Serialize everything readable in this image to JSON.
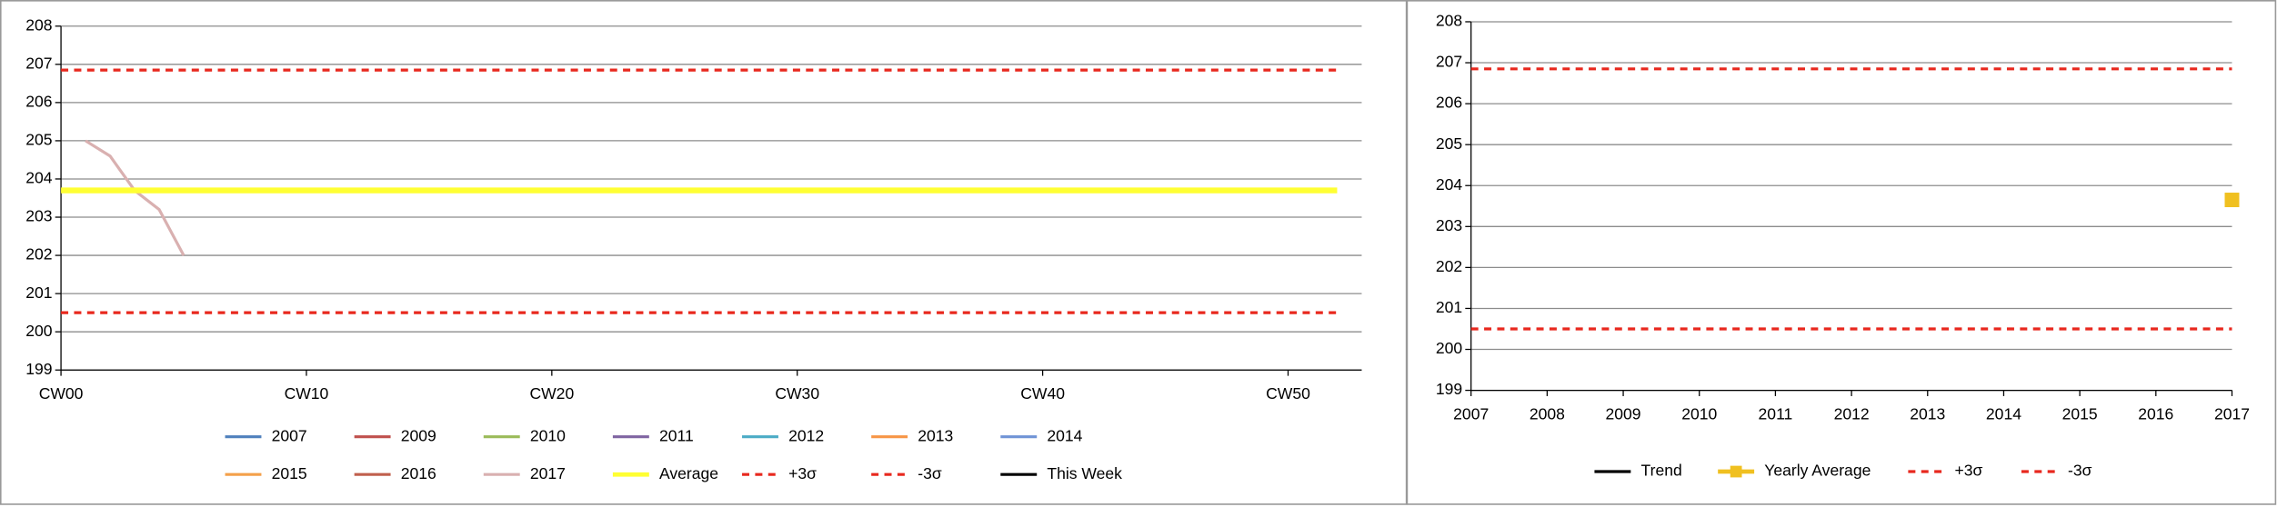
{
  "chart_data": [
    {
      "type": "line",
      "ylim": [
        199,
        208
      ],
      "yticks": [
        199,
        200,
        201,
        202,
        203,
        204,
        205,
        206,
        207,
        208
      ],
      "xlim": [
        0,
        53
      ],
      "xticks": [
        {
          "value": 0,
          "label": "CW00"
        },
        {
          "value": 10,
          "label": "CW10"
        },
        {
          "value": 20,
          "label": "CW20"
        },
        {
          "value": 30,
          "label": "CW30"
        },
        {
          "value": 40,
          "label": "CW40"
        },
        {
          "value": 50,
          "label": "CW50"
        }
      ],
      "grid": true,
      "series": [
        {
          "name": "2007",
          "color": "#4f81bd",
          "x": [],
          "values": []
        },
        {
          "name": "2009",
          "color": "#c0504d",
          "x": [],
          "values": []
        },
        {
          "name": "2010",
          "color": "#9bbb59",
          "x": [],
          "values": []
        },
        {
          "name": "2011",
          "color": "#8064a2",
          "x": [],
          "values": []
        },
        {
          "name": "2012",
          "color": "#4bacc6",
          "x": [],
          "values": []
        },
        {
          "name": "2013",
          "color": "#f79646",
          "x": [],
          "values": []
        },
        {
          "name": "2014",
          "color": "#7094d6",
          "x": [],
          "values": []
        },
        {
          "name": "2015",
          "color": "#f4a04a",
          "x": [],
          "values": []
        },
        {
          "name": "2016",
          "color": "#c0604d",
          "x": [],
          "values": []
        },
        {
          "name": "2017",
          "color": "#d9b0b0",
          "x": [
            1,
            2,
            3,
            4,
            5
          ],
          "values": [
            205,
            204.6,
            203.7,
            203.2,
            202
          ]
        },
        {
          "name": "Average",
          "color": "#ffff33",
          "width": 4,
          "x": [
            0,
            52
          ],
          "values": [
            203.7,
            203.7
          ]
        },
        {
          "name": "+3σ",
          "color": "#e8281e",
          "dashed": true,
          "x": [
            0,
            52
          ],
          "values": [
            206.85,
            206.85
          ]
        },
        {
          "name": "-3σ",
          "color": "#e8281e",
          "dashed": true,
          "x": [
            0,
            52
          ],
          "values": [
            200.5,
            200.5
          ]
        },
        {
          "name": "This Week",
          "color": "#000000",
          "x": [],
          "values": []
        }
      ]
    },
    {
      "type": "line",
      "ylim": [
        199,
        208
      ],
      "yticks": [
        199,
        200,
        201,
        202,
        203,
        204,
        205,
        206,
        207,
        208
      ],
      "xlim": [
        2007,
        2017
      ],
      "xticks": [
        2007,
        2008,
        2009,
        2010,
        2011,
        2012,
        2013,
        2014,
        2015,
        2016,
        2017
      ],
      "grid": true,
      "series": [
        {
          "name": "Trend",
          "color": "#000000",
          "x": [],
          "values": []
        },
        {
          "name": "Yearly Average",
          "color": "#f0c020",
          "width": 4,
          "marker": "square",
          "x": [
            2017
          ],
          "values": [
            203.65
          ]
        },
        {
          "name": "+3σ",
          "color": "#e8281e",
          "dashed": true,
          "x": [
            2007,
            2017
          ],
          "values": [
            206.85,
            206.85
          ]
        },
        {
          "name": "-3σ",
          "color": "#e8281e",
          "dashed": true,
          "x": [
            2007,
            2017
          ],
          "values": [
            200.5,
            200.5
          ]
        }
      ]
    }
  ]
}
